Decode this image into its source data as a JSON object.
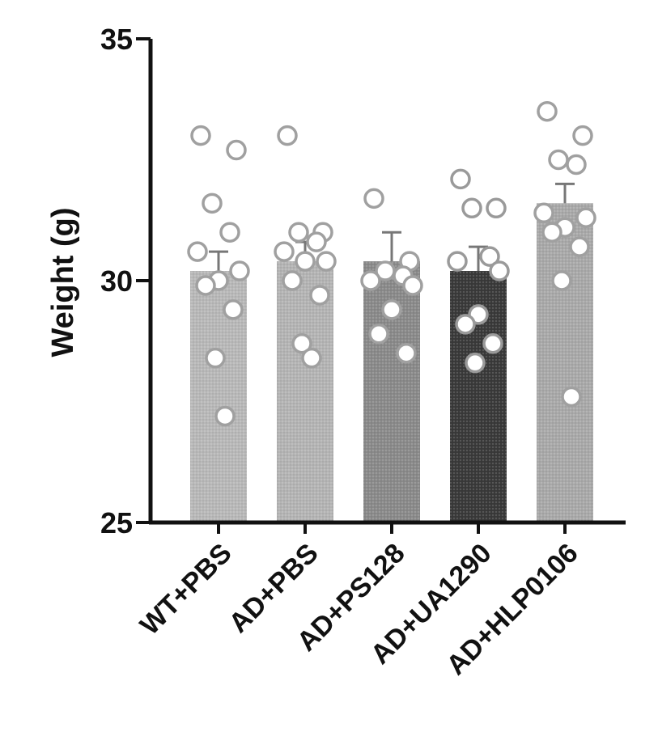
{
  "chart_data": {
    "type": "bar",
    "title": "",
    "xlabel": "",
    "ylabel": "Weight (g)",
    "ylim": [
      25,
      35
    ],
    "yticks": [
      25,
      30,
      35
    ],
    "grid": false,
    "categories": [
      "WT+PBS",
      "AD+PBS",
      "AD+PS128",
      "AD+UA1290",
      "AD+HLP0106"
    ],
    "values": [
      30.2,
      30.4,
      30.4,
      30.2,
      31.6
    ],
    "error_upper": [
      30.6,
      30.8,
      31.0,
      30.7,
      32.0
    ],
    "bar_colors": [
      "#b8b8b8",
      "#b4b4b4",
      "#8a8a8a",
      "#3a3a3a",
      "#a9a9a9"
    ],
    "points": [
      [
        33.0,
        32.7,
        31.6,
        31.0,
        30.6,
        30.2,
        30.0,
        29.9,
        29.4,
        28.4,
        27.2
      ],
      [
        33.0,
        31.0,
        31.0,
        30.8,
        30.6,
        30.4,
        30.4,
        30.0,
        29.7,
        28.7,
        28.4
      ],
      [
        31.7,
        30.4,
        30.2,
        30.1,
        30.0,
        29.9,
        29.4,
        28.9,
        28.5
      ],
      [
        32.1,
        31.5,
        31.5,
        30.5,
        30.4,
        30.2,
        29.3,
        29.1,
        28.7,
        28.3
      ],
      [
        33.5,
        33.0,
        32.5,
        32.4,
        31.4,
        31.3,
        31.1,
        31.0,
        30.7,
        30.0,
        27.6
      ]
    ]
  }
}
